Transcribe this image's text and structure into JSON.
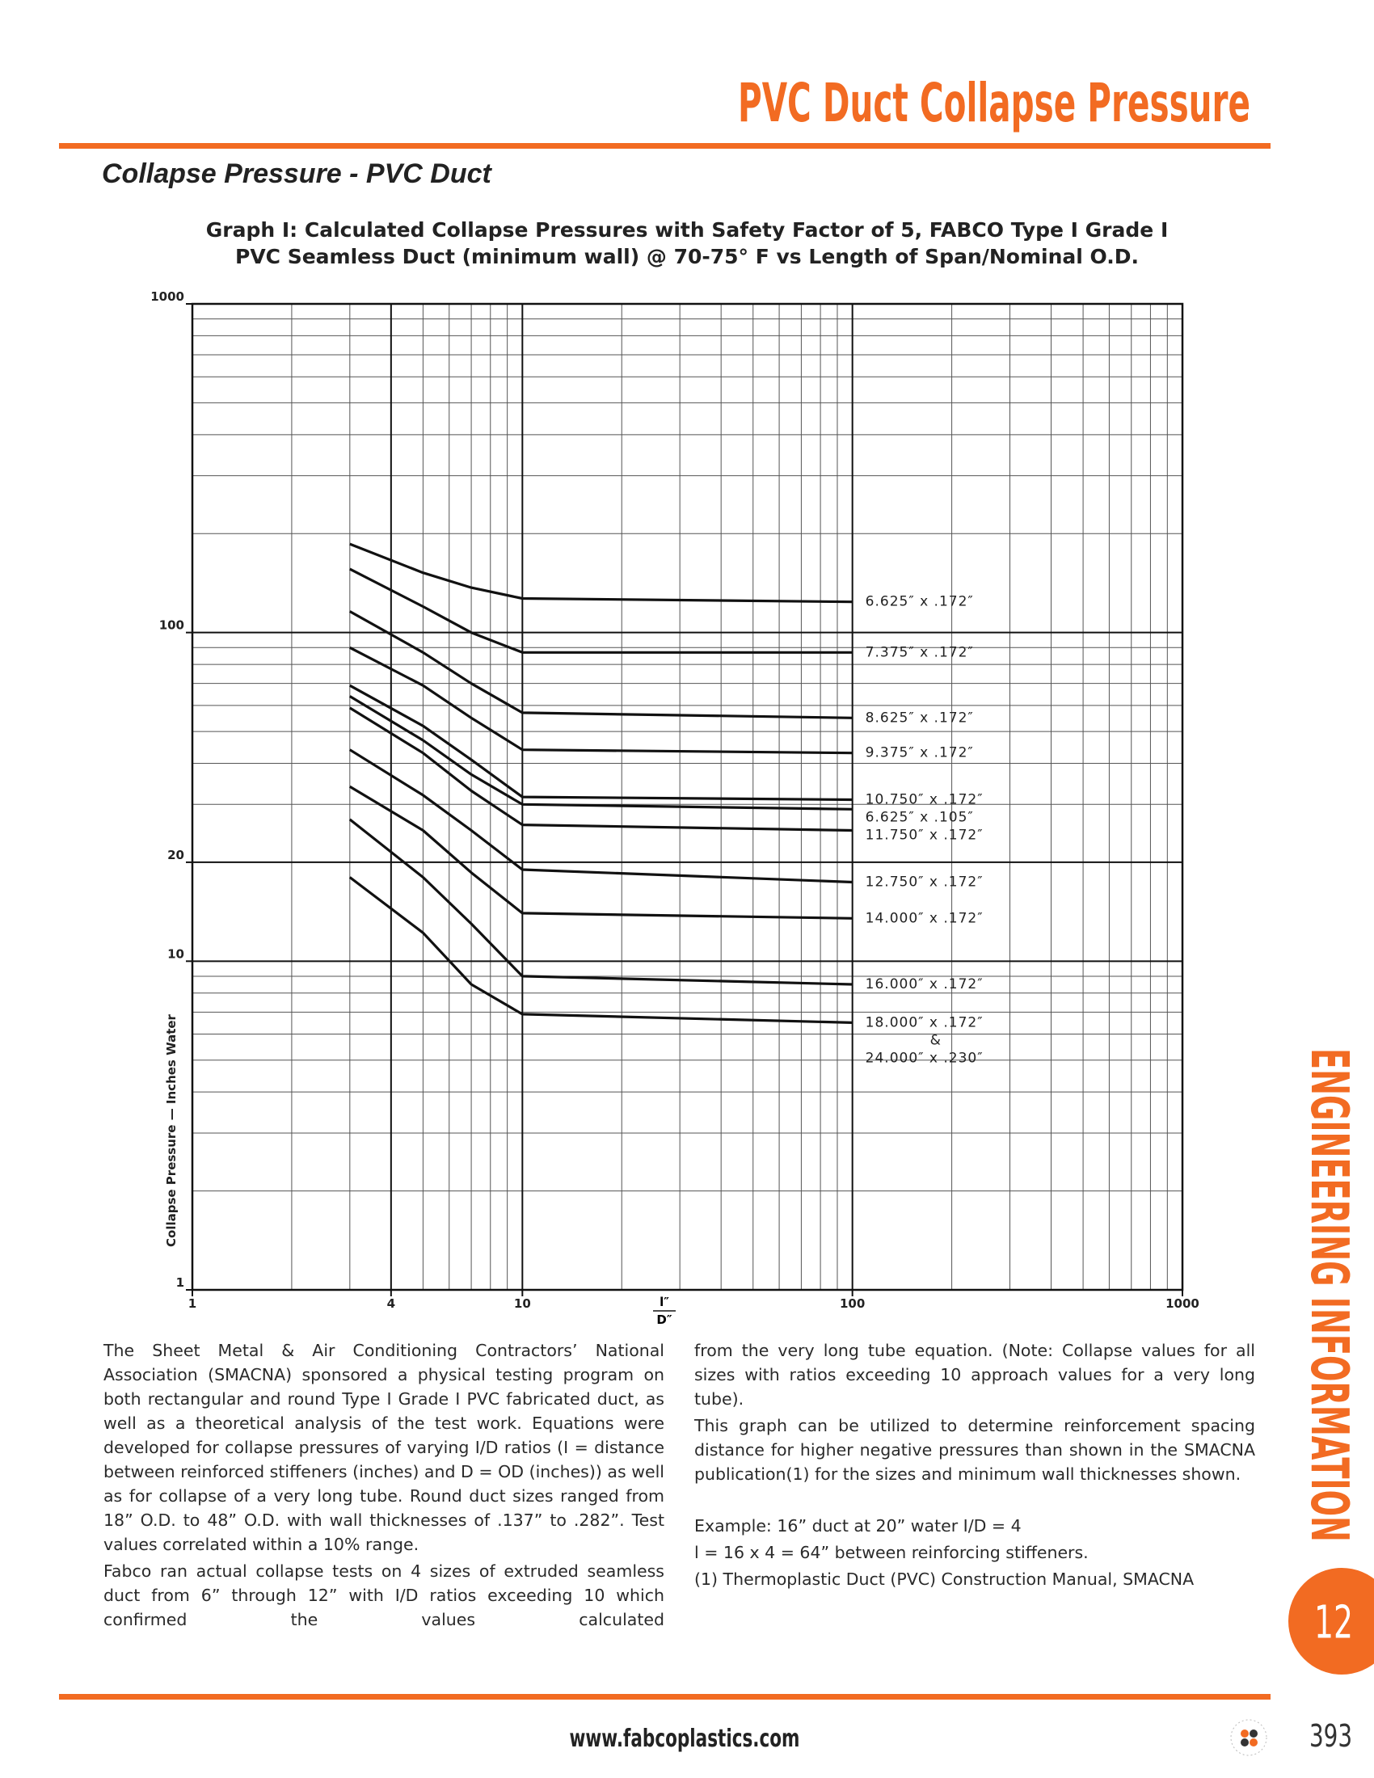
{
  "header": {
    "title": "PVC Duct Collapse Pressure"
  },
  "section_title": "Collapse Pressure - PVC Duct",
  "chart_data": {
    "type": "line",
    "title": "Graph I: Calculated Collapse Pressures with Safety Factor of 5, FABCO Type I Grade I",
    "subtitle": "PVC Seamless Duct (minimum wall) @ 70-75° F vs Length of Span/Nominal O.D.",
    "ylabel": "Collapse Pressure — Inches Water",
    "xlabel": {
      "numerator": "l″",
      "denominator": "D″"
    },
    "xscale": "log",
    "yscale": "log",
    "xlim": [
      1,
      1000
    ],
    "ylim": [
      1,
      1000
    ],
    "xticks": [
      1,
      4,
      10,
      100,
      1000
    ],
    "yticks": [
      1,
      10,
      20,
      100,
      1000
    ],
    "grid": true,
    "x": [
      3,
      5,
      7,
      10,
      100
    ],
    "series": [
      {
        "name": "6.625″ x .172″",
        "color": "#111111",
        "values": [
          186,
          152,
          137,
          127,
          124
        ]
      },
      {
        "name": "7.375″ x .172″",
        "color": "#111111",
        "values": [
          156,
          120,
          100,
          87,
          87
        ]
      },
      {
        "name": "8.625″ x .172″",
        "color": "#111111",
        "values": [
          116,
          87,
          70,
          57,
          55
        ]
      },
      {
        "name": "9.375″ x .172″",
        "color": "#111111",
        "values": [
          90,
          69,
          55,
          44,
          43
        ]
      },
      {
        "name": "10.750″ x .172″",
        "color": "#111111",
        "values": [
          69,
          52,
          41,
          31.6,
          31
        ]
      },
      {
        "name": "6.625″ x .105″",
        "color": "#111111",
        "values": [
          64,
          47,
          37,
          30,
          29
        ]
      },
      {
        "name": "11.750″ x .172″",
        "color": "#111111",
        "values": [
          59,
          43,
          33,
          26,
          25
        ]
      },
      {
        "name": "12.750″ x .172″",
        "color": "#111111",
        "values": [
          44,
          32,
          25,
          19,
          17.4
        ]
      },
      {
        "name": "14.000″ x .172″",
        "color": "#111111",
        "values": [
          34,
          25,
          18.6,
          14,
          13.5
        ]
      },
      {
        "name": "16.000″ x .172″",
        "color": "#111111",
        "values": [
          27,
          18,
          13,
          9.0,
          8.5
        ]
      },
      {
        "name": "18.000″ x .172″\n&\n24.000″ x .230″",
        "color": "#111111",
        "values": [
          18,
          12.2,
          8.5,
          6.9,
          6.5
        ]
      }
    ]
  },
  "body": {
    "left": [
      "The Sheet Metal & Air Conditioning Contractors’ National Association (SMACNA) sponsored a physical testing program on both rectangular and round Type I Grade I PVC fabricated duct, as well as a theoretical analysis of the test work. Equations were developed for collapse pressures of varying I/D ratios (I = distance between reinforced stiffeners (inches) and D = OD (inches)) as well as for collapse of a very long tube. Round duct sizes ranged from 18” O.D. to 48” O.D. with wall thicknesses of .137” to .282”. Test values correlated within a 10% range.",
      "Fabco ran actual collapse tests on 4 sizes of extruded seamless duct from 6” through 12” with I/D ratios exceeding 10 which confirmed the values calculated"
    ],
    "right": [
      "from the very long tube equation. (Note: Collapse values for all sizes with ratios exceeding 10 approach values for a very long tube).",
      "This graph can be utilized to determine reinforcement spacing distance for higher negative pressures than shown in the SMACNA publication(1) for the sizes and minimum wall thicknesses shown.",
      "Example: 16” duct at 20” water I/D = 4",
      "l = 16 x 4 = 64” between reinforcing stiffeners.",
      "(1) Thermoplastic Duct (PVC) Construction Manual, SMACNA"
    ]
  },
  "side_tab": {
    "label": "ENGINEERING INFORMATION",
    "section": "12"
  },
  "footer": {
    "url": "www.fabcoplastics.com",
    "page": "393"
  }
}
